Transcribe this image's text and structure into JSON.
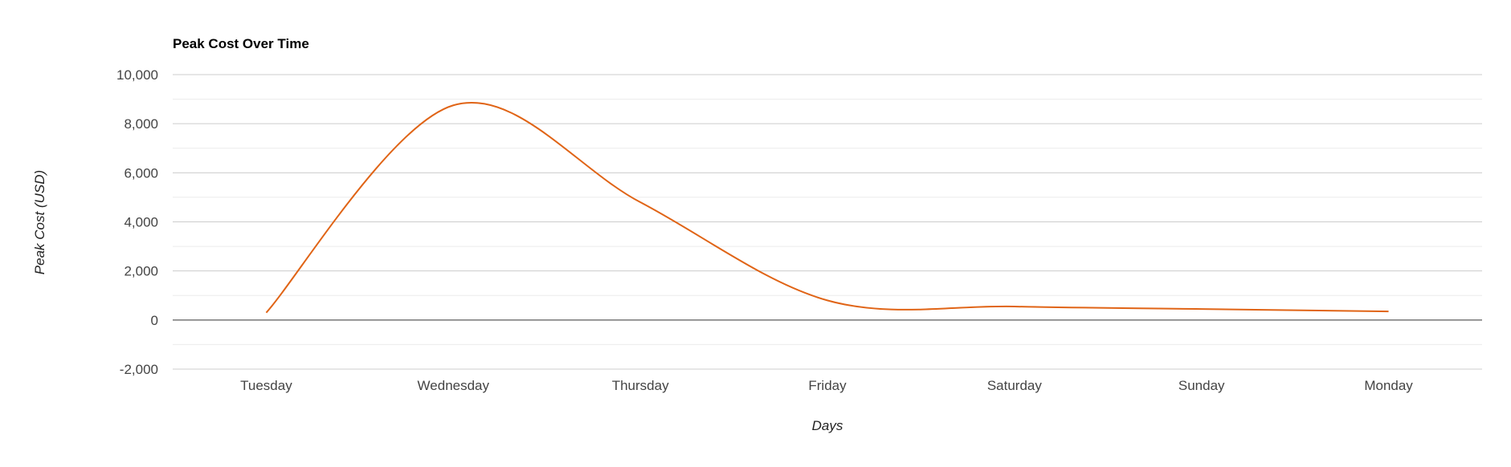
{
  "chart_data": {
    "type": "line",
    "title": "Peak Cost Over Time",
    "xlabel": "Days",
    "ylabel": "Peak Cost (USD)",
    "categories": [
      "Tuesday",
      "Wednesday",
      "Thursday",
      "Friday",
      "Saturday",
      "Sunday",
      "Monday"
    ],
    "series": [
      {
        "values": [
          300,
          8750,
          4800,
          800,
          550,
          450,
          350
        ]
      }
    ],
    "ylim": [
      -2000,
      10000
    ],
    "yticks": [
      {
        "value": -2000,
        "label": "-2,000"
      },
      {
        "value": 0,
        "label": "0"
      },
      {
        "value": 2000,
        "label": "2,000"
      },
      {
        "value": 4000,
        "label": "4,000"
      },
      {
        "value": 6000,
        "label": "6,000"
      },
      {
        "value": 8000,
        "label": "8,000"
      },
      {
        "value": 10000,
        "label": "10,000"
      }
    ],
    "grid": true,
    "legend": "none",
    "smooth": true,
    "colors": {
      "line": "#e06416",
      "grid_major": "#cccccc",
      "grid_minor": "#ebebeb",
      "zero_line": "#333333"
    }
  }
}
